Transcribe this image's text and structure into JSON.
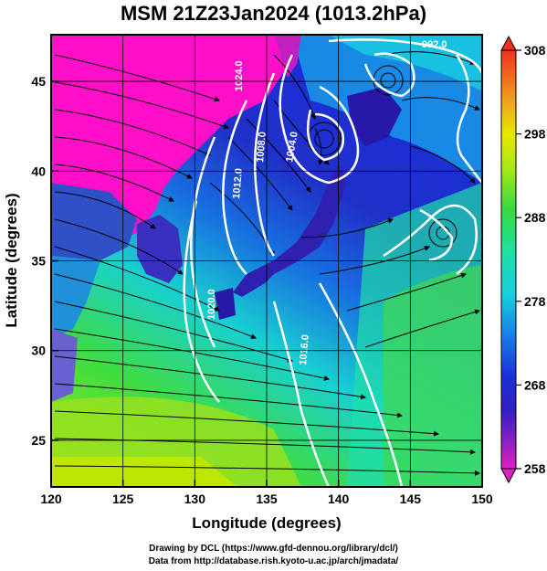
{
  "title": "MSM 21Z23Jan2024 (1013.2hPa)",
  "axes": {
    "xlabel": "Longitude (degrees)",
    "ylabel": "Latitude  (degrees)",
    "xticks": [
      120,
      125,
      130,
      135,
      140,
      145,
      150
    ],
    "yticks": [
      25,
      30,
      35,
      40,
      45
    ],
    "xlim": [
      120,
      150
    ],
    "ylim": [
      22.4,
      47.6
    ]
  },
  "colorbar": {
    "ticks": [
      258,
      268,
      278,
      288,
      298,
      308
    ],
    "min": 258,
    "max": 308,
    "extend": "both"
  },
  "contours": {
    "color": "#ffffff",
    "labels": [
      "992.0",
      "1004.0",
      "1008.0",
      "1012.0",
      "1016.0",
      "1020.0",
      "1024.0"
    ]
  },
  "credits": {
    "line1": "Drawing by DCL (https://www.gfd-dennou.org/library/dcl/)",
    "line2": "Data from http://database.rish.kyoto-u.ac.jp/arch/jmadata/"
  },
  "colors": {
    "cold": "#ff10c8",
    "cool": "#1a2fd8",
    "mid": "#18e0e0",
    "warm": "#3ed838",
    "hot": "#c8e800"
  }
}
